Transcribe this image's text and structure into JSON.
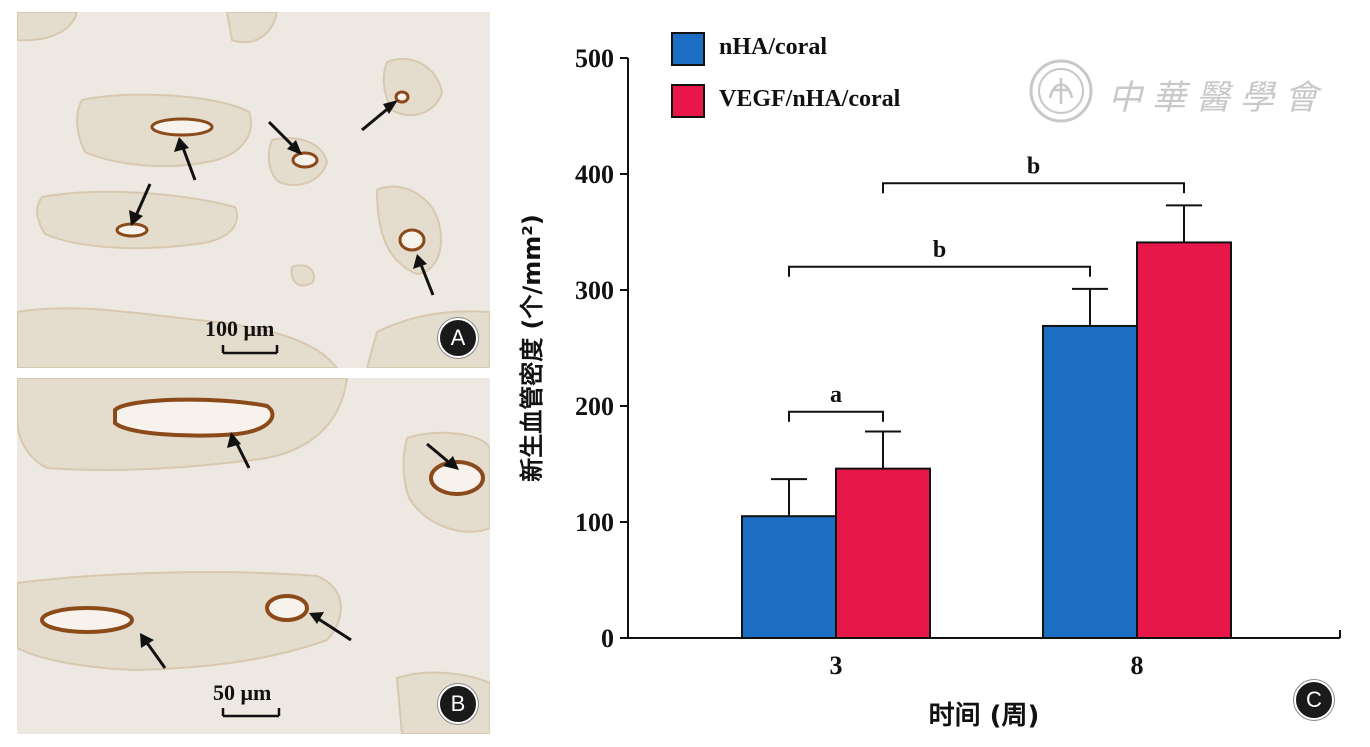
{
  "panels": {
    "a": {
      "badge": "A",
      "scale_bar": "100 μm"
    },
    "b": {
      "badge": "B",
      "scale_bar": "50 μm"
    },
    "c": {
      "badge": "C"
    }
  },
  "watermark": {
    "text": "中華醫學會",
    "icon": "society-seal-icon"
  },
  "colors": {
    "nha_coral": "#1b6ec2",
    "vegf_nha_coral": "#e8174a",
    "tissue_bg": "#ece8e0",
    "stain": "#8b4a1a"
  },
  "chart_data": {
    "type": "bar",
    "categories": [
      "3",
      "8"
    ],
    "series": [
      {
        "name": "nHA/coral",
        "values": [
          105,
          269
        ],
        "error": [
          32,
          32
        ]
      },
      {
        "name": "VEGF/nHA/coral",
        "values": [
          146,
          341
        ],
        "error": [
          32,
          32
        ]
      }
    ],
    "xlabel": "时间 (周)",
    "ylabel": "新生血管密度 (个/mm²)",
    "ylim": [
      0,
      500
    ],
    "yticks": [
      "0",
      "100",
      "200",
      "300",
      "400",
      "500"
    ],
    "legend_position": "top-left",
    "grid": false,
    "annotations": [
      {
        "label": "a",
        "from": "nHA/coral @ 3",
        "to": "VEGF/nHA/coral @ 3",
        "level": 195
      },
      {
        "label": "b",
        "from": "nHA/coral @ 3",
        "to": "nHA/coral @ 8",
        "level": 320
      },
      {
        "label": "b",
        "from": "VEGF/nHA/coral @ 3",
        "to": "VEGF/nHA/coral @ 8",
        "level": 392
      }
    ]
  }
}
